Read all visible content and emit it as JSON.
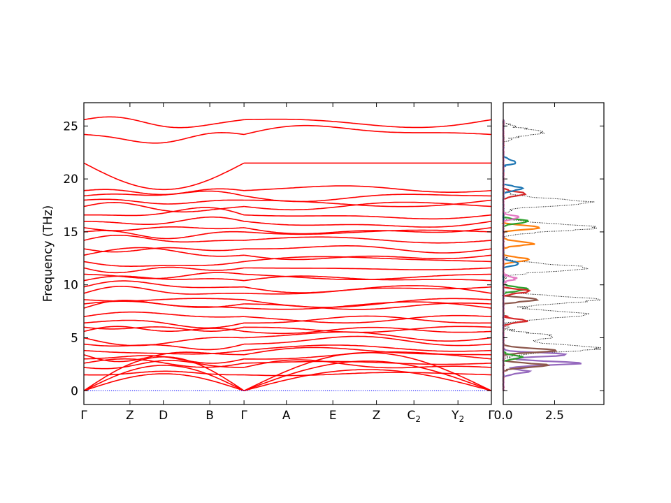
{
  "chart_data": [
    {
      "type": "line",
      "title": "",
      "ylabel": "Frequency (THz)",
      "xlabel": "",
      "ylim": [
        -1.3,
        27.2
      ],
      "yticks": [
        "0",
        "5",
        "10",
        "15",
        "20",
        "25"
      ],
      "ytick_values": [
        0,
        5,
        10,
        15,
        20,
        25
      ],
      "kpath_labels": [
        "Γ",
        "Z",
        "D",
        "B",
        "Γ",
        "A",
        "E",
        "Z",
        "C2",
        "Y2",
        "Γ"
      ],
      "kpath_positions": [
        0,
        0.113,
        0.195,
        0.309,
        0.393,
        0.497,
        0.611,
        0.718,
        0.81,
        0.918,
        1.0
      ],
      "segments": [
        [
          0,
          4
        ],
        [
          4,
          10
        ]
      ],
      "band_color": "#ff0000",
      "zero_line_color": "#0000ff",
      "band_frequencies_at_gamma": [
        0,
        0,
        0,
        1.5,
        2.2,
        2.6,
        3.0,
        3.4,
        3.8,
        4.4,
        5.0,
        5.6,
        6.0,
        6.4,
        7.0,
        7.8,
        8.2,
        8.6,
        9.2,
        9.8,
        10.4,
        11.0,
        11.6,
        12.2,
        12.8,
        13.4,
        14.2,
        15.0,
        15.4,
        16.0,
        16.6,
        17.4,
        18.0,
        18.4,
        18.9,
        21.5,
        24.2,
        25.6
      ]
    },
    {
      "type": "line",
      "title": "",
      "xlabel": "",
      "xlim": [
        0,
        4.9
      ],
      "ylim": [
        -1.3,
        27.2
      ],
      "xticks": [
        "0.0",
        "2.5"
      ],
      "xtick_values": [
        0,
        2.5
      ],
      "series": [
        {
          "color": "#000000",
          "style": "dotted",
          "peaks": [
            [
              2.4,
              5.1
            ],
            [
              4.7,
              4.0
            ],
            [
              4.3,
              7.2
            ],
            [
              4.6,
              8.6
            ],
            [
              4.1,
              11.6
            ],
            [
              4.5,
              15.4
            ],
            [
              4.2,
              17.8
            ],
            [
              1.9,
              24.4
            ]
          ]
        },
        {
          "color": "#9467bd",
          "peaks": [
            [
              3.8,
              2.6
            ],
            [
              3.1,
              3.4
            ],
            [
              1.2,
              1.8
            ]
          ]
        },
        {
          "color": "#8c564b",
          "peaks": [
            [
              2.7,
              3.8
            ],
            [
              2.2,
              2.4
            ],
            [
              1.6,
              8.6
            ]
          ]
        },
        {
          "color": "#ff7f0e",
          "peaks": [
            [
              1.8,
              15.4
            ],
            [
              1.5,
              13.9
            ],
            [
              1.2,
              12.4
            ]
          ]
        },
        {
          "color": "#2ca02c",
          "peaks": [
            [
              1.3,
              16.0
            ],
            [
              1.2,
              9.6
            ],
            [
              0.9,
              3.2
            ]
          ]
        },
        {
          "color": "#d62728",
          "peaks": [
            [
              1.3,
              9.4
            ],
            [
              1.1,
              6.6
            ],
            [
              1.1,
              18.6
            ]
          ]
        },
        {
          "color": "#1f77b4",
          "peaks": [
            [
              1.0,
              19.1
            ],
            [
              0.8,
              12.0
            ],
            [
              0.7,
              21.6
            ]
          ]
        },
        {
          "color": "#e377c2",
          "peaks": [
            [
              0.7,
              16.4
            ],
            [
              0.6,
              10.6
            ]
          ]
        }
      ]
    }
  ]
}
